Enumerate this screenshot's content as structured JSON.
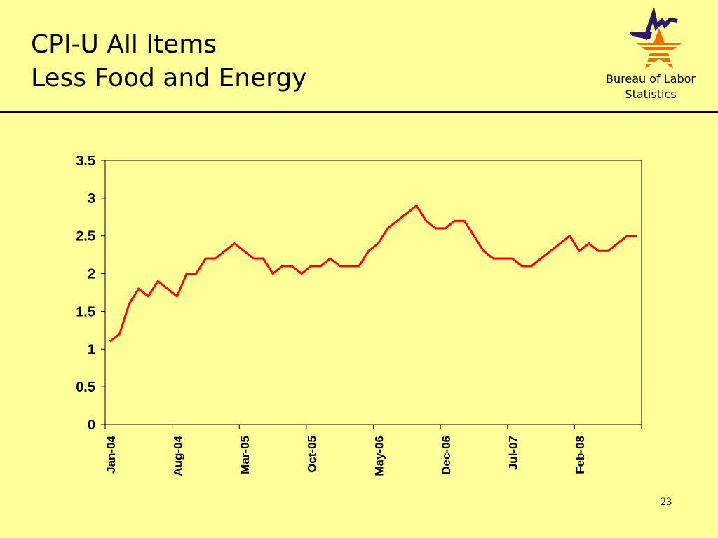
{
  "slide": {
    "title_line1": "CPI-U All Items",
    "title_line2": "Less Food and Energy",
    "logo_text_line1": "Bureau of Labor",
    "logo_text_line2": "Statistics",
    "page_number": "23"
  },
  "colors": {
    "background": "#ffff99",
    "line": "#ff0000",
    "logo_navy": "#2b1a6b",
    "logo_orange": "#ff6a00"
  },
  "chart_data": {
    "type": "line",
    "title": "",
    "xlabel": "",
    "ylabel": "",
    "ylim": [
      0,
      3.5
    ],
    "yticks": [
      "0",
      "0.5",
      "1",
      "1.5",
      "2",
      "2.5",
      "3",
      "3.5"
    ],
    "xtick_labels": [
      "Jan-04",
      "Aug-04",
      "Mar-05",
      "Oct-05",
      "May-06",
      "Dec-06",
      "Jul-07",
      "Feb-08"
    ],
    "grid": false,
    "x": [
      "Jan-04",
      "Feb-04",
      "Mar-04",
      "Apr-04",
      "May-04",
      "Jun-04",
      "Jul-04",
      "Aug-04",
      "Sep-04",
      "Oct-04",
      "Nov-04",
      "Dec-04",
      "Jan-05",
      "Feb-05",
      "Mar-05",
      "Apr-05",
      "May-05",
      "Jun-05",
      "Jul-05",
      "Aug-05",
      "Sep-05",
      "Oct-05",
      "Nov-05",
      "Dec-05",
      "Jan-06",
      "Feb-06",
      "Mar-06",
      "Apr-06",
      "May-06",
      "Jun-06",
      "Jul-06",
      "Aug-06",
      "Sep-06",
      "Oct-06",
      "Nov-06",
      "Dec-06",
      "Jan-07",
      "Feb-07",
      "Mar-07",
      "Apr-07",
      "May-07",
      "Jun-07",
      "Jul-07",
      "Aug-07",
      "Sep-07",
      "Oct-07",
      "Nov-07",
      "Dec-07",
      "Jan-08",
      "Feb-08",
      "Mar-08",
      "Apr-08",
      "May-08",
      "Jun-08",
      "Jul-08",
      "Aug-08"
    ],
    "series": [
      {
        "values": [
          1.1,
          1.2,
          1.6,
          1.8,
          1.7,
          1.9,
          1.8,
          1.7,
          2.0,
          2.0,
          2.2,
          2.2,
          2.3,
          2.4,
          2.3,
          2.2,
          2.2,
          2.0,
          2.1,
          2.1,
          2.0,
          2.1,
          2.1,
          2.2,
          2.1,
          2.1,
          2.1,
          2.3,
          2.4,
          2.6,
          2.7,
          2.8,
          2.9,
          2.7,
          2.6,
          2.6,
          2.7,
          2.7,
          2.5,
          2.3,
          2.2,
          2.2,
          2.2,
          2.1,
          2.1,
          2.2,
          2.3,
          2.4,
          2.5,
          2.3,
          2.4,
          2.3,
          2.3,
          2.4,
          2.5,
          2.5
        ]
      }
    ]
  }
}
